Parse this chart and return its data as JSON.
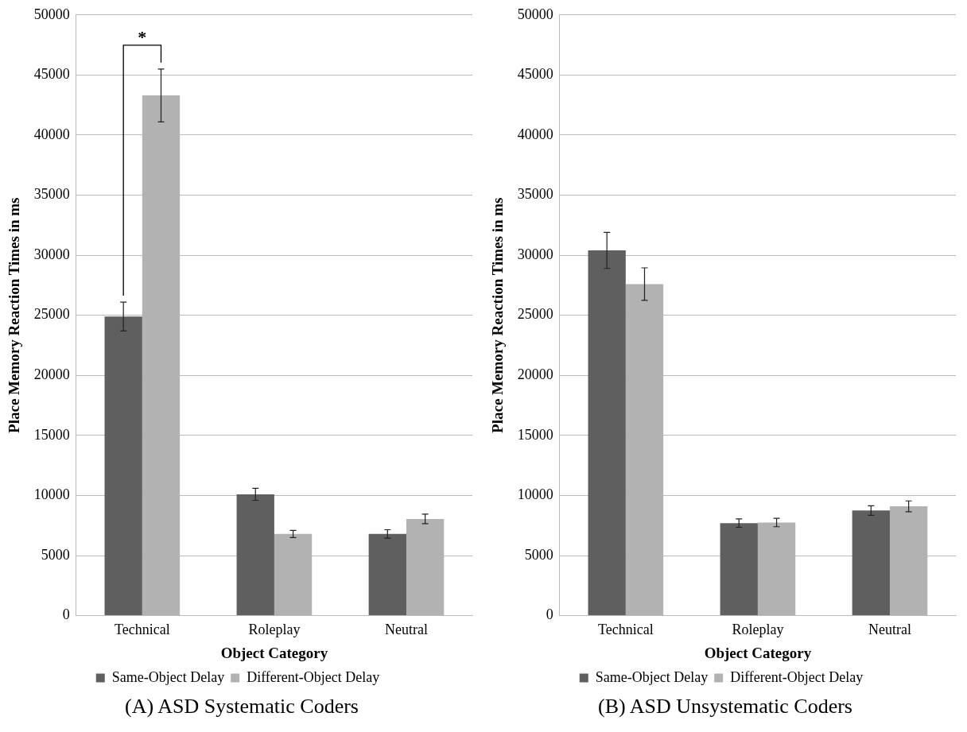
{
  "chart_data": [
    {
      "type": "bar",
      "title": "(A) ASD Systematic Coders",
      "xlabel": "Object Category",
      "ylabel": "Place Memory Reaction Times in ms",
      "categories": [
        "Technical",
        "Roleplay",
        "Neutral"
      ],
      "series": [
        {
          "name": "Same-Object Delay",
          "color": "#5f5f5f",
          "values": [
            24900,
            10100,
            6800
          ],
          "errors": [
            1200,
            500,
            350
          ]
        },
        {
          "name": "Different-Object Delay",
          "color": "#b2b2b2",
          "values": [
            43300,
            6800,
            8050
          ],
          "errors": [
            2200,
            300,
            400
          ]
        }
      ],
      "ylim": [
        0,
        50000
      ],
      "yticks": [
        0,
        5000,
        10000,
        15000,
        20000,
        25000,
        30000,
        35000,
        40000,
        45000,
        50000
      ],
      "grid": "y",
      "legend": "bottom",
      "annotations": [
        "*"
      ]
    },
    {
      "type": "bar",
      "title": "(B) ASD Unsystematic Coders",
      "xlabel": "Object Category",
      "ylabel": "Place Memory Reaction Times in ms",
      "categories": [
        "Technical",
        "Roleplay",
        "Neutral"
      ],
      "series": [
        {
          "name": "Same-Object Delay",
          "color": "#5f5f5f",
          "values": [
            30400,
            7700,
            8750
          ],
          "errors": [
            1500,
            350,
            400
          ]
        },
        {
          "name": "Different-Object Delay",
          "color": "#b2b2b2",
          "values": [
            27600,
            7750,
            9100
          ],
          "errors": [
            1350,
            350,
            450
          ]
        }
      ],
      "ylim": [
        0,
        50000
      ],
      "yticks": [
        0,
        5000,
        10000,
        15000,
        20000,
        25000,
        30000,
        35000,
        40000,
        45000,
        50000
      ],
      "grid": "y",
      "legend": "bottom"
    }
  ]
}
